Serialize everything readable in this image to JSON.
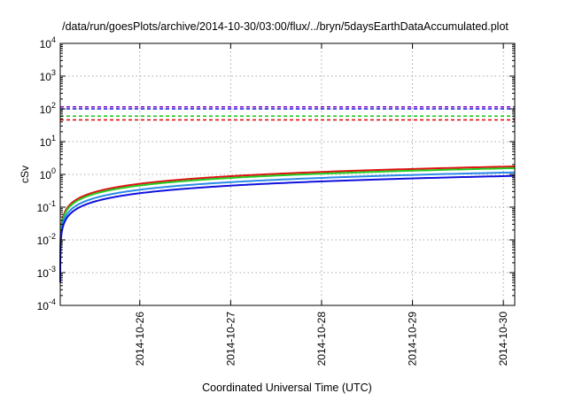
{
  "chart_data": {
    "type": "line",
    "title": "/data/run/goesPlots/archive/2014-10-30/03:00/flux/../bryn/5daysEarthDataAccumulated.plot",
    "xlabel": "Coordinated Universal Time (UTC)",
    "ylabel": "cSv",
    "yscale": "log",
    "ylim": [
      0.0001,
      10000
    ],
    "y_ticks": [
      {
        "value": 0.0001,
        "base": "10",
        "exp": "-4"
      },
      {
        "value": 0.001,
        "base": "10",
        "exp": "-3"
      },
      {
        "value": 0.01,
        "base": "10",
        "exp": "-2"
      },
      {
        "value": 0.1,
        "base": "10",
        "exp": "-1"
      },
      {
        "value": 1,
        "base": "10",
        "exp": "0"
      },
      {
        "value": 10,
        "base": "10",
        "exp": "1"
      },
      {
        "value": 100,
        "base": "10",
        "exp": "2"
      },
      {
        "value": 1000,
        "base": "10",
        "exp": "3"
      },
      {
        "value": 10000,
        "base": "10",
        "exp": "4"
      }
    ],
    "xlim": [
      "2014-10-25T03:00",
      "2014-10-30T03:00"
    ],
    "x_ticks": [
      "2014-10-26",
      "2014-10-27",
      "2014-10-28",
      "2014-10-29",
      "2014-10-30"
    ],
    "grid": true,
    "thresholds": [
      {
        "value": 115,
        "color": "#8000c0",
        "style": "dashed"
      },
      {
        "value": 100,
        "color": "#1a1ae6",
        "style": "dashed"
      },
      {
        "value": 60,
        "color": "#22cc22",
        "style": "dashed"
      },
      {
        "value": 46,
        "color": "#e01010",
        "style": "dashed"
      }
    ],
    "series": [
      {
        "color": "#e01010",
        "final_value": 1.75
      },
      {
        "color": "#22cc22",
        "final_value": 1.55
      },
      {
        "color": "#2a8ae8",
        "final_value": 1.15
      },
      {
        "color": "#1010dd",
        "final_value": 0.9
      }
    ],
    "curve_start_value": 0.0005,
    "curve_shape": "power 0.7 of elapsed time"
  }
}
